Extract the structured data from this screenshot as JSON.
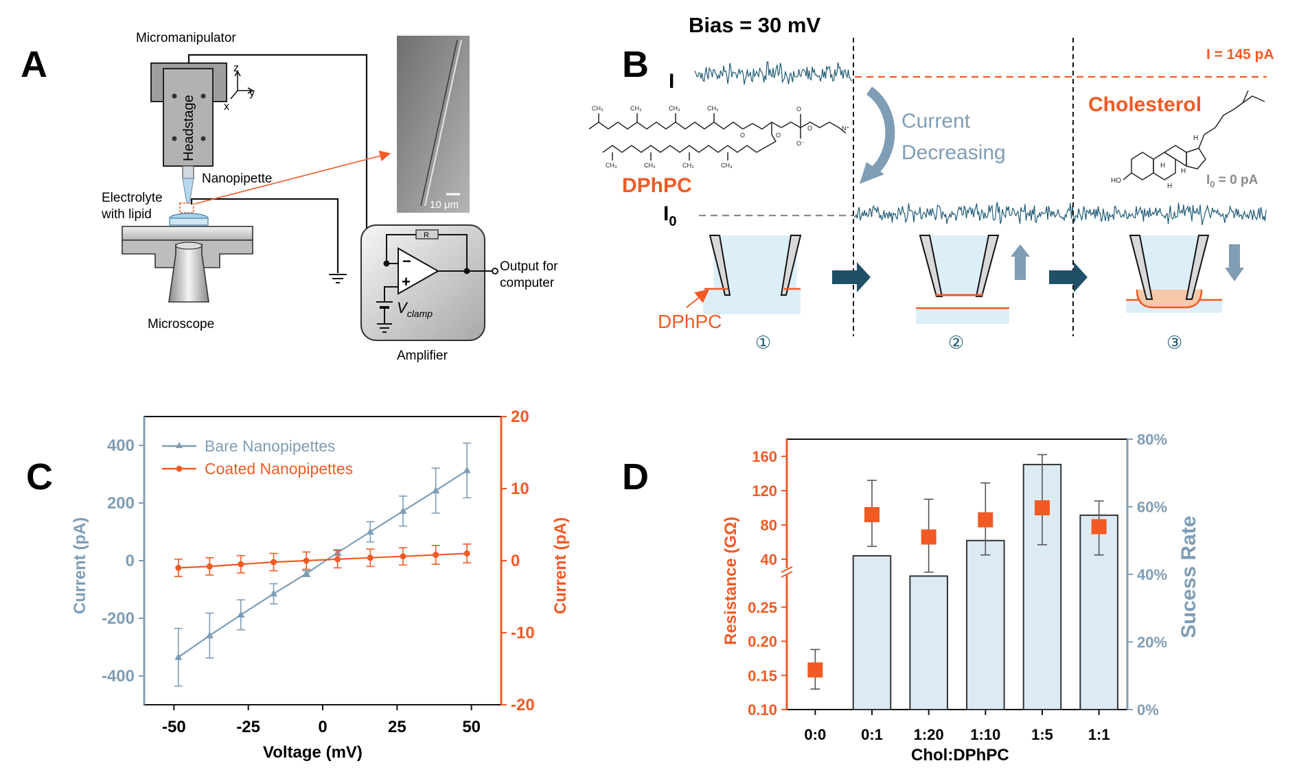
{
  "colors": {
    "orange": "#F15A24",
    "steel": "#7F9DB5",
    "trace": "#1E5A74",
    "arrow": "#1F5068",
    "light_blue": "#DCEFF8",
    "bar_fill": "#DCEAF4"
  },
  "panel_a": {
    "label": "A",
    "micromanipulator": "Micromanipulator",
    "headstage": "Headstage",
    "axis_z": "z",
    "axis_y": "y",
    "axis_x": "x",
    "nanopipette": "Nanopipette",
    "electrolyte_line1": "Electrolyte",
    "electrolyte_line2": "with lipid",
    "microscope": "Microscope",
    "scale_bar": "10 μm",
    "resistor": "R",
    "vclamp_v": "V",
    "vclamp_sub": "clamp",
    "output_line1": "Output for",
    "output_line2": "computer",
    "amplifier": "Amplifier"
  },
  "panel_b": {
    "label": "B",
    "title": "Bias = 30 mV",
    "i_label": "I",
    "i0_label": "I",
    "i0_sub": "0",
    "i145": "I = 145 pA",
    "current_line1": "Current",
    "current_line2": "Decreasing",
    "cholesterol": "Cholesterol",
    "dphpc": "DPhPC",
    "i0_right_i": "I",
    "i0_right_sub": "0",
    "i0_right_val": " = 0 pA",
    "dphpc_small": "DPhPC",
    "step1": "①",
    "step2": "②",
    "step3": "③"
  },
  "panel_c": {
    "label": "C",
    "chart_data": {
      "type": "line",
      "xlabel": "Voltage (mV)",
      "ylabel_left": "Current (pA)",
      "ylabel_right": "Current (pA)",
      "xlim": [
        -60,
        60
      ],
      "ylim_left": [
        -500,
        500
      ],
      "ylim_right": [
        -20,
        20
      ],
      "x_ticks": [
        "-50",
        "-25",
        "0",
        "25",
        "50"
      ],
      "y_ticks_left": [
        "400",
        "200",
        "0",
        "-200",
        "-400"
      ],
      "y_ticks_right": [
        "20",
        "10",
        "0",
        "-10",
        "-20"
      ],
      "legend_placement": "top-left",
      "series": [
        {
          "name": "Bare Nanopipettes",
          "axis": "left",
          "x": [
            -48.5,
            -38,
            -27.5,
            -16.5,
            -5.5,
            5,
            16,
            27,
            38,
            48.5
          ],
          "values": [
            -335,
            -260,
            -188,
            -115,
            -45,
            28,
            100,
            172,
            243,
            313
          ],
          "error": [
            100,
            78,
            52,
            35,
            10,
            10,
            35,
            52,
            78,
            95
          ]
        },
        {
          "name": "Coated Nanopipettes",
          "axis": "right",
          "x": [
            -48.5,
            -38,
            -27.5,
            -16.5,
            -5.5,
            5,
            16,
            27,
            38,
            48.5
          ],
          "values": [
            -1,
            -0.8,
            -0.5,
            -0.2,
            0,
            0.2,
            0.4,
            0.6,
            0.8,
            1
          ],
          "error": [
            1.2,
            1.2,
            1.2,
            1.2,
            1.2,
            1.2,
            1.2,
            1.2,
            1.3,
            1.3
          ]
        }
      ]
    }
  },
  "panel_d": {
    "label": "D",
    "chart_data": {
      "type": "bar",
      "xlabel": "Chol:DPhPC",
      "ylabel_left": "Resistance (GΩ)",
      "ylabel_right": "Sucess Rate",
      "categories": [
        "0:0",
        "0:1",
        "1:20",
        "1:10",
        "1:5",
        "1:1"
      ],
      "y_ticks_left_upper": [
        "160",
        "120",
        "80",
        "40"
      ],
      "y_ticks_left_lower": [
        "0.25",
        "0.20",
        "0.15",
        "0.10"
      ],
      "y_ticks_right": [
        "80%",
        "60%",
        "40%",
        "20%",
        "0%"
      ],
      "ylim_right": [
        0,
        80
      ],
      "series": [
        {
          "name": "Sucess Rate",
          "axis": "right",
          "values": [
            0,
            45.5,
            39.5,
            50,
            72.5,
            57.5
          ]
        },
        {
          "name": "Resistance (GΩ)",
          "axis": "left",
          "values": [
            0.158,
            92,
            66,
            86,
            100,
            78
          ],
          "error_low": [
            0.13,
            55,
            25,
            45,
            57,
            45
          ],
          "error_high": [
            0.188,
            132,
            110,
            129,
            162,
            108
          ]
        }
      ]
    }
  }
}
